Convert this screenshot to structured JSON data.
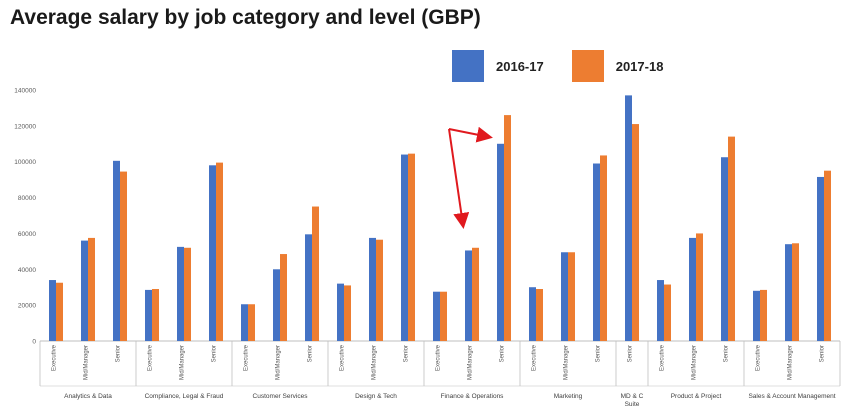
{
  "title": "Average salary by job category and level (GBP)",
  "colors": {
    "series_2016": "#4472C4",
    "series_2017": "#ED7D31",
    "arrow": "#E0191E",
    "axis": "#bfbfbf"
  },
  "chart_data": {
    "type": "bar",
    "title": "Average salary by job category and level (GBP)",
    "xlabel": "",
    "ylabel": "",
    "ylim": [
      0,
      140000
    ],
    "yticks": [
      0,
      20000,
      40000,
      60000,
      80000,
      100000,
      120000,
      140000
    ],
    "grid": false,
    "legend_position": "top",
    "groups": [
      {
        "category": "Analytics & Data",
        "levels": [
          "Executive",
          "Mid/Manager",
          "Senior"
        ]
      },
      {
        "category": "Compliance, Legal & Fraud",
        "levels": [
          "Executive",
          "Mid/Manager",
          "Senior"
        ]
      },
      {
        "category": "Customer Services",
        "levels": [
          "Executive",
          "Mid/Manager",
          "Senior"
        ]
      },
      {
        "category": "Design & Tech",
        "levels": [
          "Executive",
          "Mid/Manager",
          "Senior"
        ]
      },
      {
        "category": "Finance & Operations",
        "levels": [
          "Executive",
          "Mid/Manager",
          "Senior"
        ]
      },
      {
        "category": "Marketing",
        "levels": [
          "Executive",
          "Mid/Manager",
          "Senior"
        ]
      },
      {
        "category": "MD & C Suite",
        "levels": [
          "Senior"
        ]
      },
      {
        "category": "Product & Project",
        "levels": [
          "Executive",
          "Mid/Manager",
          "Senior"
        ]
      },
      {
        "category": "Sales & Account Management",
        "levels": [
          "Executive",
          "Mid/Manager",
          "Senior"
        ]
      }
    ],
    "series": [
      {
        "name": "2016-17",
        "values": [
          34000,
          56000,
          100500,
          28500,
          52500,
          98000,
          20500,
          40000,
          59500,
          32000,
          57500,
          104000,
          27500,
          50500,
          110000,
          30000,
          49500,
          99000,
          137000,
          34000,
          57500,
          102500,
          28000,
          54000,
          91500
        ]
      },
      {
        "name": "2017-18",
        "values": [
          32500,
          57500,
          94500,
          29000,
          52000,
          99500,
          20500,
          48500,
          75000,
          31000,
          56500,
          104500,
          27500,
          52000,
          126000,
          29000,
          49500,
          103500,
          121000,
          31500,
          60000,
          114000,
          28500,
          54500,
          95000
        ]
      }
    ]
  }
}
